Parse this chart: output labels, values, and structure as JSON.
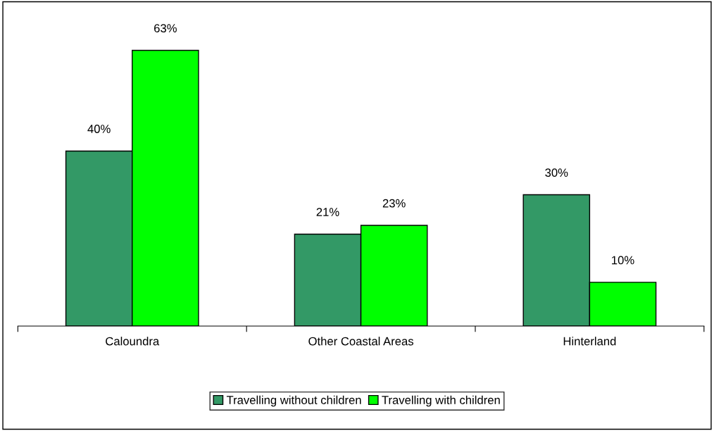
{
  "chart_data": {
    "type": "bar",
    "categories": [
      "Caloundra",
      "Other Coastal Areas",
      "Hinterland"
    ],
    "series": [
      {
        "name": "Travelling without children",
        "color": "#339966",
        "values": [
          40,
          21,
          30
        ],
        "value_labels": [
          "40%",
          "21%",
          "30%"
        ]
      },
      {
        "name": "Travelling with children",
        "color": "#00ff00",
        "values": [
          63,
          23,
          10
        ],
        "value_labels": [
          "63%",
          "23%",
          "10%"
        ]
      }
    ],
    "tick_labels": "x",
    "legend": "bottom",
    "grid": false
  }
}
